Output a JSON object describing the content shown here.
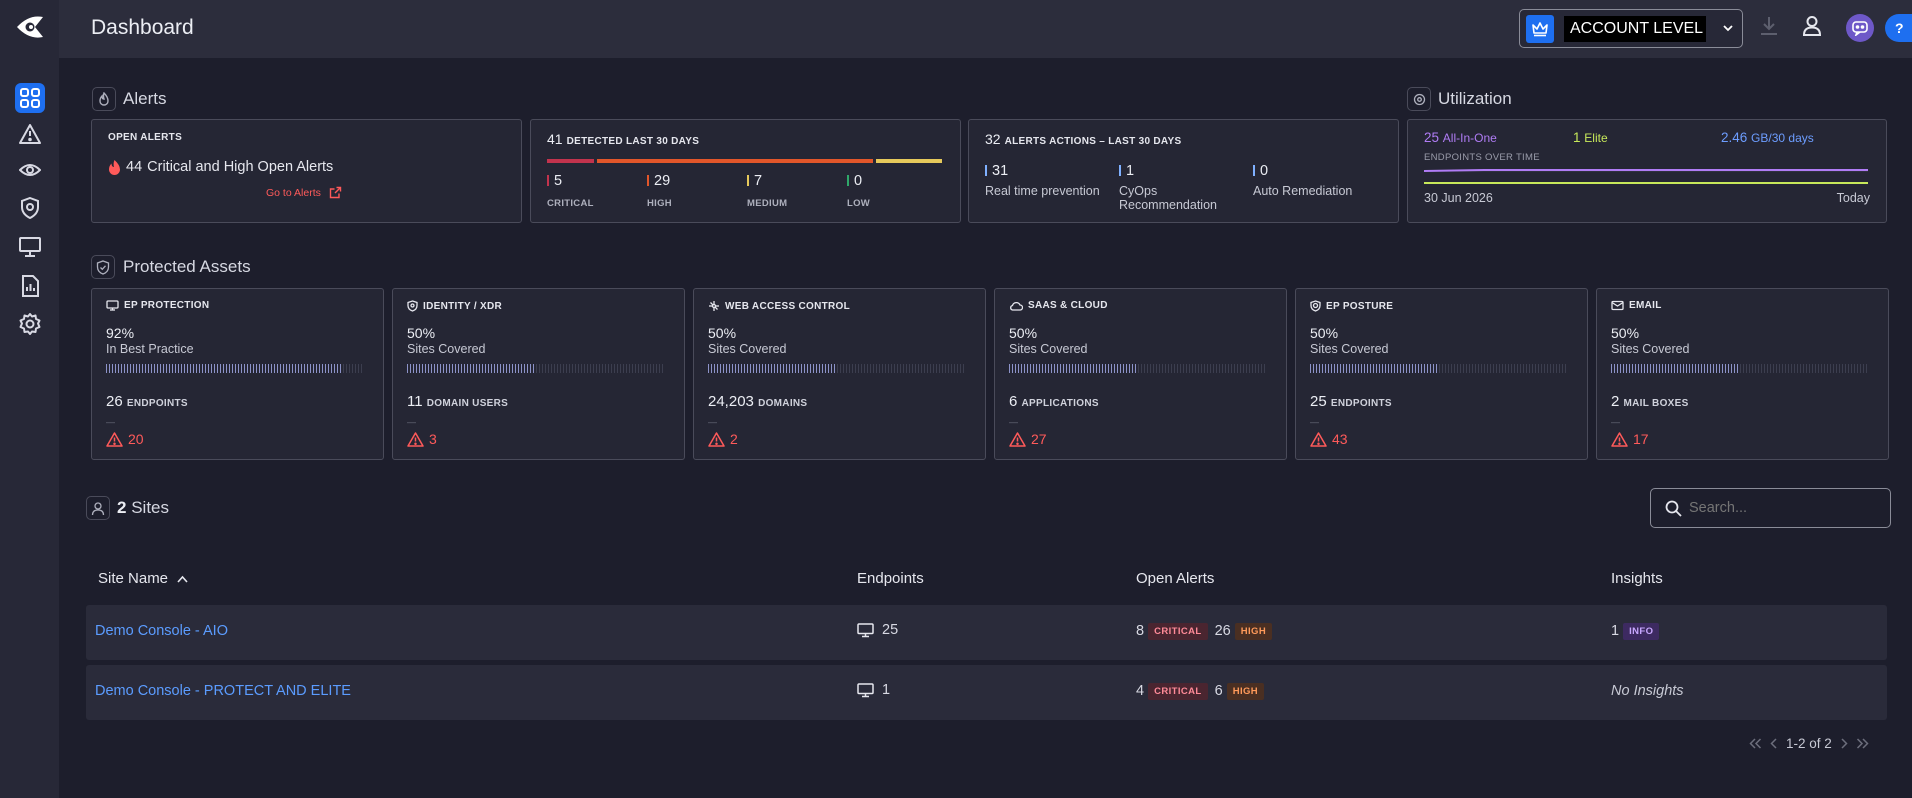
{
  "header": {
    "title": "Dashboard",
    "account_label": "ACCOUNT LEVEL"
  },
  "alerts": {
    "section_title": "Alerts",
    "open": {
      "label": "OPEN ALERTS",
      "count": "44",
      "text": "Critical and High Open Alerts",
      "link": "Go to Alerts"
    },
    "detected": {
      "count": "41",
      "label": "DETECTED LAST 30 DAYS",
      "items": [
        {
          "value": "5",
          "label": "CRITICAL",
          "color": "#c2334d"
        },
        {
          "value": "29",
          "label": "HIGH",
          "color": "#e2562a"
        },
        {
          "value": "7",
          "label": "MEDIUM",
          "color": "#e6c95b"
        },
        {
          "value": "0",
          "label": "LOW",
          "color": "#2fa86a"
        }
      ]
    },
    "actions": {
      "count": "32",
      "label": "ALERTS ACTIONS – LAST 30 DAYS",
      "items": [
        {
          "value": "31",
          "label": "Real time prevention"
        },
        {
          "value": "1",
          "label": "CyOps Recommendation"
        },
        {
          "value": "0",
          "label": "Auto Remediation"
        }
      ]
    }
  },
  "utilization": {
    "section_title": "Utilization",
    "aio": "25",
    "aio_label": "All-In-One",
    "elite": "1",
    "elite_label": "Elite",
    "gb": "2.46",
    "gb_label": "GB/30 days",
    "over_time_label": "ENDPOINTS OVER TIME",
    "start_date": "30 Jun 2026",
    "end_label": "Today",
    "colors": {
      "aio": "#b07cf5",
      "elite": "#c7e85a",
      "gb": "#6d9dff"
    }
  },
  "protected_assets": {
    "section_title": "Protected Assets",
    "cards": [
      {
        "title": "EP PROTECTION",
        "icon": "monitor-icon",
        "pct": "92%",
        "pct_value": 92,
        "subtitle": "In Best Practice",
        "count": "26",
        "unit": "ENDPOINTS",
        "dash": "—",
        "alerts": "20"
      },
      {
        "title": "IDENTITY / XDR",
        "icon": "shield-icon",
        "pct": "50%",
        "pct_value": 50,
        "subtitle": "Sites Covered",
        "count": "11",
        "unit": "DOMAIN USERS",
        "dash": "—",
        "alerts": "3"
      },
      {
        "title": "WEB ACCESS CONTROL",
        "icon": "network-icon",
        "pct": "50%",
        "pct_value": 50,
        "subtitle": "Sites Covered",
        "count": "24,203",
        "unit": "DOMAINS",
        "dash": "—",
        "alerts": "2"
      },
      {
        "title": "SAAS & CLOUD",
        "icon": "cloud-icon",
        "pct": "50%",
        "pct_value": 50,
        "subtitle": "Sites Covered",
        "count": "6",
        "unit": "APPLICATIONS",
        "dash": "—",
        "alerts": "27"
      },
      {
        "title": "EP POSTURE",
        "icon": "posture-icon",
        "pct": "50%",
        "pct_value": 50,
        "subtitle": "Sites Covered",
        "count": "25",
        "unit": "ENDPOINTS",
        "dash": "—",
        "alerts": "43"
      },
      {
        "title": "EMAIL",
        "icon": "mail-icon",
        "pct": "50%",
        "pct_value": 50,
        "subtitle": "Sites Covered",
        "count": "2",
        "unit": "MAIL BOXES",
        "dash": "—",
        "alerts": "17"
      }
    ]
  },
  "sites": {
    "count": "2",
    "label": "Sites",
    "search_placeholder": "Search...",
    "columns": [
      "Site Name",
      "Endpoints",
      "Open Alerts",
      "Insights"
    ],
    "rows": [
      {
        "name": "Demo Console - AIO",
        "endpoints": "25",
        "critical": "8",
        "critical_label": "CRITICAL",
        "high": "26",
        "high_label": "HIGH",
        "insight_count": "1",
        "insight_label": "INFO"
      },
      {
        "name": "Demo Console - PROTECT AND ELITE",
        "endpoints": "1",
        "critical": "4",
        "critical_label": "CRITICAL",
        "high": "6",
        "high_label": "HIGH",
        "insights": "No Insights"
      }
    ],
    "pagination": "1-2 of 2"
  }
}
